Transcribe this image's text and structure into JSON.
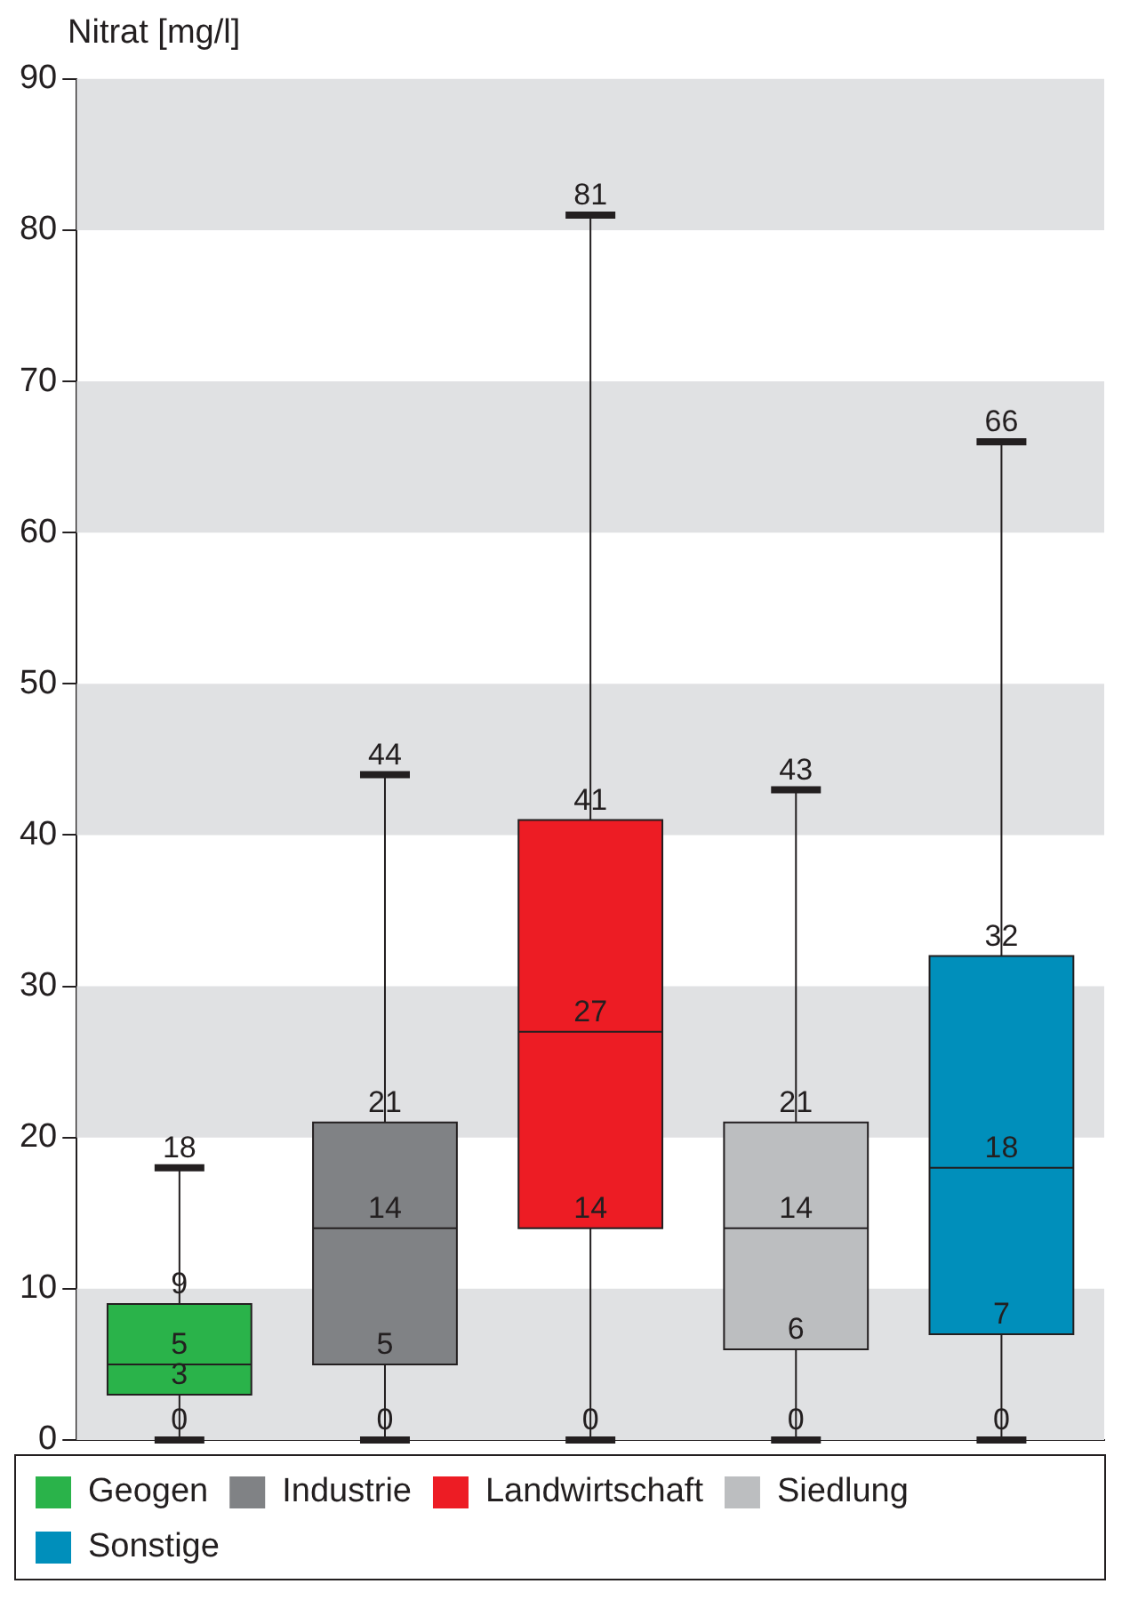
{
  "chart_data": {
    "type": "box",
    "ylabel": "Nitrat [mg/l]",
    "categories": [
      null,
      null,
      null,
      null,
      null
    ],
    "series": [
      {
        "name": "Geogen",
        "color": "#2ab34a",
        "boxes": [
          {
            "low": 0,
            "q1": 3,
            "median": 5,
            "q3": 9,
            "high": 18
          },
          null,
          null,
          null,
          null
        ]
      },
      {
        "name": "Industrie",
        "color": "#808285",
        "boxes": [
          null,
          {
            "low": 0,
            "q1": 5,
            "median": 14,
            "q3": 21,
            "high": 44
          },
          null,
          null,
          null
        ]
      },
      {
        "name": "Landwirtschaft",
        "color": "#ed1c24",
        "boxes": [
          null,
          null,
          {
            "low": 0,
            "q1": 14,
            "median": 27,
            "q3": 41,
            "high": 81
          },
          null,
          null
        ]
      },
      {
        "name": "Siedlung",
        "color": "#bcbec0",
        "boxes": [
          null,
          null,
          null,
          {
            "low": 0,
            "q1": 6,
            "median": 14,
            "q3": 21,
            "high": 43
          },
          null
        ]
      },
      {
        "name": "Sonstige",
        "color": "#008fbb",
        "boxes": [
          null,
          null,
          null,
          null,
          {
            "low": 0,
            "q1": 7,
            "median": 18,
            "q3": 32,
            "high": 66
          }
        ]
      }
    ],
    "ylim": [
      0,
      90
    ],
    "yticks": [
      0,
      10,
      20,
      30,
      40,
      50,
      60,
      70,
      80,
      90
    ],
    "bands": [
      {
        "axis": "y",
        "from": 0,
        "to": 10,
        "color": "#e0e1e3"
      },
      {
        "axis": "y",
        "from": 20,
        "to": 30,
        "color": "#e0e1e3"
      },
      {
        "axis": "y",
        "from": 40,
        "to": 50,
        "color": "#e0e1e3"
      },
      {
        "axis": "y",
        "from": 60,
        "to": 70,
        "color": "#e0e1e3"
      },
      {
        "axis": "y",
        "from": 80,
        "to": 90,
        "color": "#e0e1e3"
      }
    ],
    "annotations": [
      {
        "text": "0",
        "y": 0
      },
      {
        "text": "3",
        "y": 3
      },
      {
        "text": "5",
        "y": 5
      },
      {
        "text": "9",
        "y": 9
      },
      {
        "text": "18",
        "y": 18
      },
      {
        "text": "0",
        "y": 0
      },
      {
        "text": "5",
        "y": 5
      },
      {
        "text": "14",
        "y": 14
      },
      {
        "text": "21",
        "y": 21
      },
      {
        "text": "44",
        "y": 44
      },
      {
        "text": "0",
        "y": 0
      },
      {
        "text": "14",
        "y": 14
      },
      {
        "text": "27",
        "y": 27
      },
      {
        "text": "41",
        "y": 41
      },
      {
        "text": "81",
        "y": 81
      },
      {
        "text": "0",
        "y": 0
      },
      {
        "text": "6",
        "y": 6
      },
      {
        "text": "14",
        "y": 14
      },
      {
        "text": "21",
        "y": 21
      },
      {
        "text": "43",
        "y": 43
      },
      {
        "text": "0",
        "y": 0
      },
      {
        "text": "7",
        "y": 7
      },
      {
        "text": "18",
        "y": 18
      },
      {
        "text": "32",
        "y": 32
      },
      {
        "text": "66",
        "y": 66
      }
    ],
    "tick_labels": "y",
    "legend": "bottom"
  }
}
